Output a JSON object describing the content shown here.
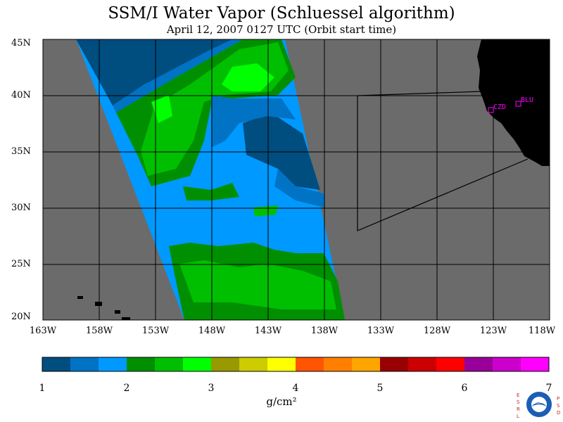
{
  "title": "SSM/I Water Vapor (Schluessel algorithm)",
  "subtitle": "April 12, 2007  0127 UTC  (Orbit start time)",
  "map": {
    "lat_labels": [
      "45N",
      "40N",
      "35N",
      "30N",
      "25N",
      "20N"
    ],
    "lon_labels": [
      "163W",
      "158W",
      "153W",
      "148W",
      "143W",
      "138W",
      "133W",
      "128W",
      "123W",
      "118W"
    ],
    "stations": [
      {
        "id": "CZD",
        "label": "CZD"
      },
      {
        "id": "BLU",
        "label": "BLU"
      }
    ],
    "colors": {
      "background_gray": "#6b6b6b",
      "land": "#000000",
      "grid": "#000000",
      "station": "#ff00ff"
    }
  },
  "colorbar": {
    "ticks": [
      "1",
      "2",
      "3",
      "4",
      "5",
      "6",
      "7"
    ],
    "units": "g/cm²",
    "colors": [
      "#004d80",
      "#0073c4",
      "#0099ff",
      "#008f00",
      "#00bf00",
      "#00ff00",
      "#999900",
      "#cccc00",
      "#ffff00",
      "#ff5500",
      "#ff7f00",
      "#ffa500",
      "#990000",
      "#cc0000",
      "#ff0000",
      "#990099",
      "#cc00cc",
      "#ff00ff"
    ]
  },
  "logo": {
    "left_text": "ESRL",
    "right_text": "PSD",
    "center_text": "NOAA"
  }
}
